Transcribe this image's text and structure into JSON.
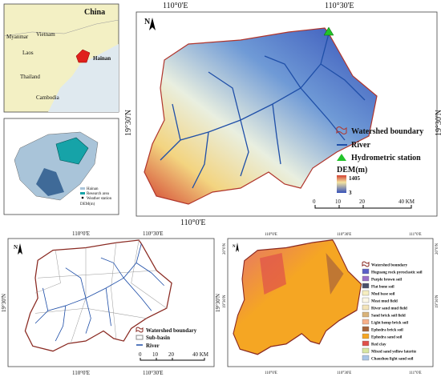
{
  "inset_location": {
    "title": "China",
    "labels": [
      "Myanmar",
      "Vietnam",
      "Laos",
      "Hainan",
      "Thailand",
      "Cambodia"
    ]
  },
  "inset_hainan": {
    "legend": [
      "Hainan",
      "Research area",
      "Weather station",
      "DEM(m)"
    ]
  },
  "dem_map": {
    "lon_ticks_top": [
      "110°0'E",
      "110°30'E"
    ],
    "lon_ticks_bottom": [
      "110°0'E"
    ],
    "lat_tick": "19°30'N",
    "north": "N",
    "legend": {
      "watershed": "Watershed boundary",
      "river": "River",
      "station": "Hydrometric station",
      "dem_title": "DEM(m)",
      "dem_max": "1405",
      "dem_min": "3"
    },
    "scale": [
      "0",
      "10",
      "20",
      "40 KM"
    ]
  },
  "subbasin_map": {
    "lon_ticks": [
      "110°0'E",
      "110°30'E"
    ],
    "lat_tick": "19°30'N",
    "north": "N",
    "legend": {
      "watershed": "Watershed boundary",
      "subbasin": "Sub-basin",
      "river": "River"
    },
    "scale": [
      "0",
      "10",
      "20",
      "40 KM"
    ]
  },
  "soil_map": {
    "lon_ticks": [
      "110°0'E",
      "110°30'E",
      "111°0'E"
    ],
    "lat_ticks": [
      "20°0'N",
      "19°30'N"
    ],
    "north": "N",
    "legend": [
      {
        "name": "Watershed boundary",
        "color": "#ffffff"
      },
      {
        "name": "Huguang rock pyroclastic soil",
        "color": "#5b5fc7"
      },
      {
        "name": "Purple brown soil",
        "color": "#9b6fc9"
      },
      {
        "name": "Flat bone soil",
        "color": "#4a4f6a"
      },
      {
        "name": "Mud base soil",
        "color": "#f6eec0"
      },
      {
        "name": "Meat mud field",
        "color": "#fbf7e6"
      },
      {
        "name": "River sand mud field",
        "color": "#f4e4b8"
      },
      {
        "name": "Sand brick soil field",
        "color": "#d9b37a"
      },
      {
        "name": "Light hemp brick soil",
        "color": "#f7b08a"
      },
      {
        "name": "Ephedra brick soil",
        "color": "#a8643a"
      },
      {
        "name": "Ephedra sand soil",
        "color": "#f5a623"
      },
      {
        "name": "Red clay",
        "color": "#e0504a"
      },
      {
        "name": "Mixed sand yellow laterite",
        "color": "#d8e6a0"
      },
      {
        "name": "Chaozhou light sand soil",
        "color": "#a9c6e8"
      }
    ]
  }
}
